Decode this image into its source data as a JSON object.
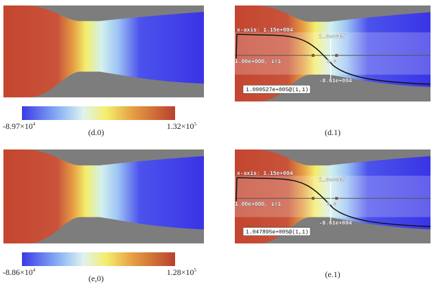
{
  "panels": [
    {
      "label": "(d.0)",
      "colorbar": {
        "min": {
          "base": "-8.97×10",
          "exponent": "4"
        },
        "max": {
          "base": "1.32×10",
          "exponent": "5"
        }
      }
    },
    {
      "label": "(d.1)",
      "overlay": {
        "x_axis": "x-axis: 1.15e+004",
        "y_axis": "1.00e+000, i=1",
        "top_value": "1.0e+005",
        "zero": "0.0",
        "bottom_value": "-8.61e+004",
        "probe": "1.090527e+005@(1,1)"
      }
    },
    {
      "label": "(e,0)",
      "colorbar": {
        "min": {
          "base": "-8.86×10",
          "exponent": "4"
        },
        "max": {
          "base": "1.28×10",
          "exponent": "5"
        }
      }
    },
    {
      "label": "(e.1)",
      "overlay": {
        "x_axis": "x-axis: 1.15e+004",
        "y_axis": "1.00e+000, i=1",
        "top_value": "1.0e+005",
        "zero": "0.0",
        "bottom_value": "-8.61e+004",
        "probe": "1.047895e+005@(1,1)"
      }
    }
  ]
}
